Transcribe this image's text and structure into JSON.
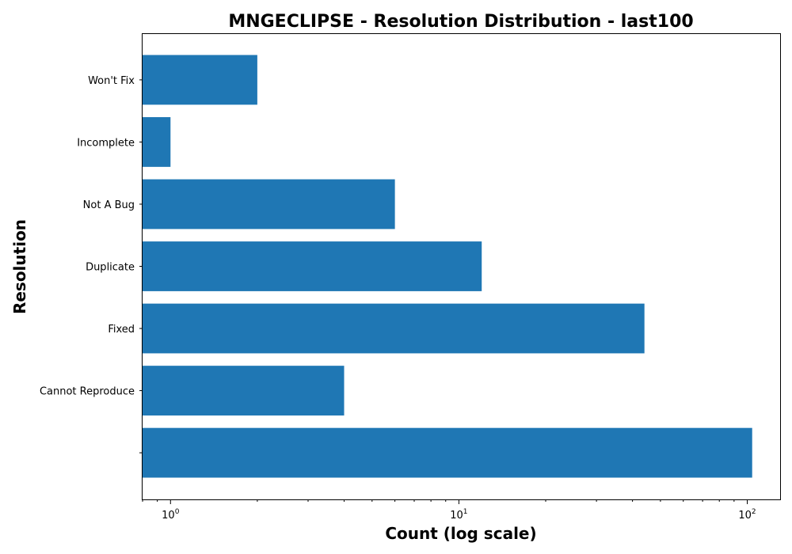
{
  "chart_data": {
    "type": "bar",
    "orientation": "horizontal",
    "title": "MNGECLIPSE - Resolution Distribution - last100",
    "xlabel": "Count (log scale)",
    "ylabel": "Resolution",
    "x_scale": "log",
    "xlim": [
      0.8,
      130
    ],
    "x_ticks": [
      {
        "value": 1,
        "base": "10",
        "exp": "0"
      },
      {
        "value": 10,
        "base": "10",
        "exp": "1"
      },
      {
        "value": 100,
        "base": "10",
        "exp": "2"
      }
    ],
    "categories": [
      "",
      "Cannot Reproduce",
      "Fixed",
      "Duplicate",
      "Not A Bug",
      "Incomplete",
      "Won't Fix"
    ],
    "values": [
      104,
      4,
      44,
      12,
      6,
      1,
      2
    ],
    "bar_color": "#1f77b4",
    "grid": false,
    "legend": "none"
  }
}
